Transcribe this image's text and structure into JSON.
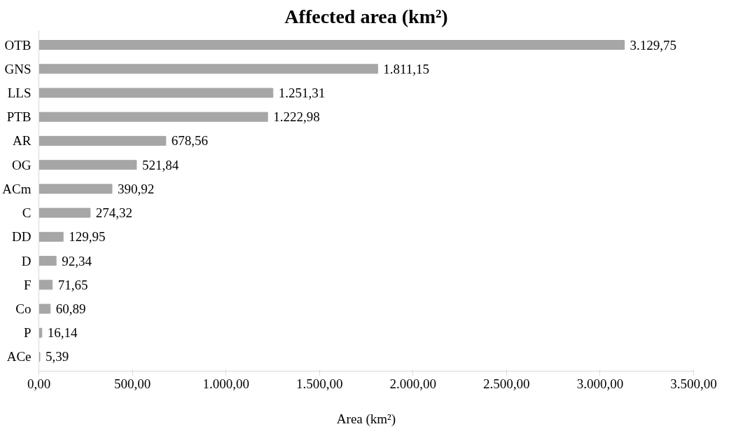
{
  "chart_data": {
    "type": "bar",
    "orientation": "horizontal",
    "title": "Affected area (km²)",
    "xlabel": "Area (km²)",
    "categories": [
      "OTB",
      "GNS",
      "LLS",
      "PTB",
      "AR",
      "OG",
      "ACm",
      "C",
      "DD",
      "D",
      "F",
      "Co",
      "P",
      "ACe"
    ],
    "values": [
      3129.75,
      1811.15,
      1251.31,
      1222.98,
      678.56,
      521.84,
      390.92,
      274.32,
      129.95,
      92.34,
      71.65,
      60.89,
      16.14,
      5.39
    ],
    "value_labels": [
      "3.129,75",
      "1.811,15",
      "1.251,31",
      "1.222,98",
      "678,56",
      "521,84",
      "390,92",
      "274,32",
      "129,95",
      "92,34",
      "71,65",
      "60,89",
      "16,14",
      "5,39"
    ],
    "color": "#a6a6a6",
    "xlim": [
      0,
      3500
    ],
    "xticks": [
      {
        "value": 0,
        "label": "0,00"
      },
      {
        "value": 500,
        "label": "500,00"
      },
      {
        "value": 1000,
        "label": "1.000,00"
      },
      {
        "value": 1500,
        "label": "1.500,00"
      },
      {
        "value": 2000,
        "label": "2.000,00"
      },
      {
        "value": 2500,
        "label": "2.500,00"
      },
      {
        "value": 3000,
        "label": "3.000,00"
      },
      {
        "value": 3500,
        "label": "3.500,00"
      }
    ],
    "grid": false
  }
}
